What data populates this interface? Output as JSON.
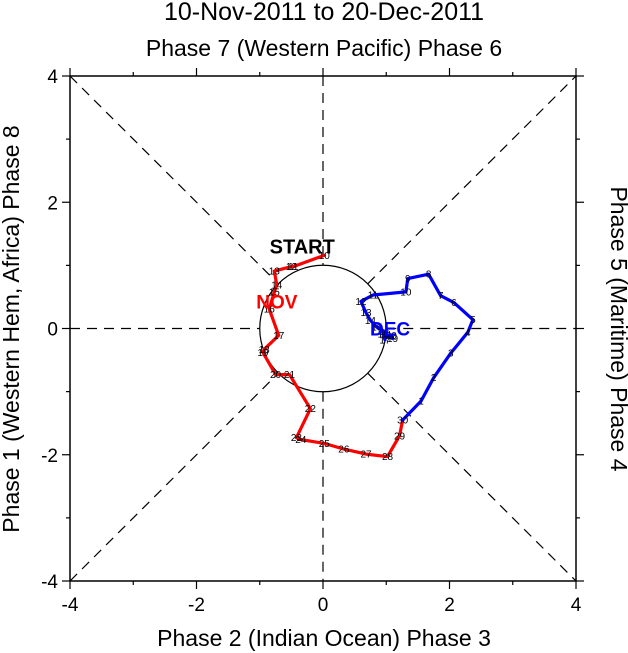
{
  "chart_data": {
    "type": "line",
    "title": "10-Nov-2011 to 20-Dec-2011",
    "top_label": "Phase 7 (Western Pacific) Phase 6",
    "bottom_label": "Phase 2 (Indian Ocean) Phase 3",
    "left_label": "Phase 1 (Western Hem, Africa) Phase 8",
    "right_label": "Phase 5 (Maritime) Phase 4",
    "xlim": [
      -4,
      4
    ],
    "ylim": [
      -4,
      4
    ],
    "x_ticks": [
      "-4",
      "-2",
      "0",
      "2",
      "4"
    ],
    "y_ticks": [
      "-4",
      "-2",
      "0",
      "2",
      "4"
    ],
    "start_label": "START",
    "series": [
      {
        "name": "NOV",
        "color": "#ff0000",
        "label_position": [
          -0.73,
          0.43
        ],
        "points": [
          {
            "day": "10",
            "x": 0.02,
            "y": 1.16
          },
          {
            "day": "11",
            "x": -0.47,
            "y": 0.98
          },
          {
            "day": "12",
            "x": -0.5,
            "y": 0.98
          },
          {
            "day": "13",
            "x": -0.77,
            "y": 0.91
          },
          {
            "day": "14",
            "x": -0.73,
            "y": 0.69
          },
          {
            "day": "15",
            "x": -0.77,
            "y": 0.58
          },
          {
            "day": "16",
            "x": -0.85,
            "y": 0.31
          },
          {
            "day": "17",
            "x": -0.7,
            "y": -0.11
          },
          {
            "day": "18",
            "x": -0.93,
            "y": -0.33
          },
          {
            "day": "19",
            "x": -0.95,
            "y": -0.38
          },
          {
            "day": "20",
            "x": -0.75,
            "y": -0.73
          },
          {
            "day": "21",
            "x": -0.53,
            "y": -0.73
          },
          {
            "day": "22",
            "x": -0.2,
            "y": -1.27
          },
          {
            "day": "23",
            "x": -0.42,
            "y": -1.73
          },
          {
            "day": "24",
            "x": -0.35,
            "y": -1.76
          },
          {
            "day": "25",
            "x": 0.02,
            "y": -1.82
          },
          {
            "day": "26",
            "x": 0.33,
            "y": -1.91
          },
          {
            "day": "27",
            "x": 0.68,
            "y": -1.99
          },
          {
            "day": "28",
            "x": 1.02,
            "y": -2.03
          },
          {
            "day": "29",
            "x": 1.21,
            "y": -1.7
          },
          {
            "day": "30",
            "x": 1.26,
            "y": -1.45
          }
        ]
      },
      {
        "name": "DEC",
        "color": "#0000ff",
        "label_position": [
          1.06,
          0.0
        ],
        "points": [
          {
            "day": "1",
            "x": 1.55,
            "y": -1.15
          },
          {
            "day": "2",
            "x": 1.75,
            "y": -0.78
          },
          {
            "day": "3",
            "x": 2.02,
            "y": -0.39
          },
          {
            "day": "4",
            "x": 2.29,
            "y": -0.06
          },
          {
            "day": "5",
            "x": 2.37,
            "y": 0.14
          },
          {
            "day": "6",
            "x": 2.07,
            "y": 0.41
          },
          {
            "day": "7",
            "x": 1.86,
            "y": 0.52
          },
          {
            "day": "8",
            "x": 1.67,
            "y": 0.86
          },
          {
            "day": "9",
            "x": 1.34,
            "y": 0.79
          },
          {
            "day": "10",
            "x": 1.31,
            "y": 0.58
          },
          {
            "day": "11",
            "x": 0.79,
            "y": 0.53
          },
          {
            "day": "12",
            "x": 0.6,
            "y": 0.43
          },
          {
            "day": "13",
            "x": 0.68,
            "y": 0.25
          },
          {
            "day": "14",
            "x": 0.75,
            "y": 0.13
          },
          {
            "day": "15",
            "x": 0.85,
            "y": 0.02
          },
          {
            "day": "16",
            "x": 0.98,
            "y": -0.05
          },
          {
            "day": "17",
            "x": 0.98,
            "y": -0.18
          },
          {
            "day": "18",
            "x": 0.95,
            "y": -0.09
          },
          {
            "day": "19",
            "x": 1.1,
            "y": -0.16
          },
          {
            "day": "20",
            "x": 1.08,
            "y": -0.11
          }
        ]
      }
    ]
  }
}
